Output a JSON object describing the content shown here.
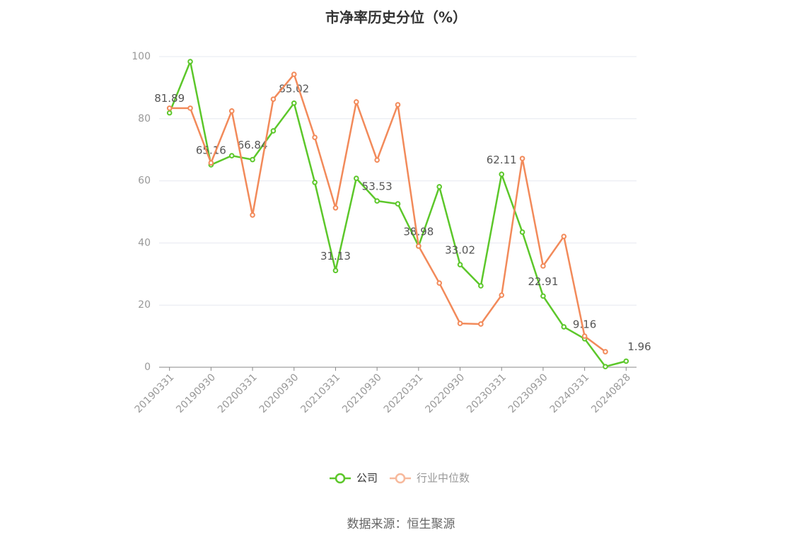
{
  "chart_data": {
    "type": "line",
    "title": "市净率历史分位（%）",
    "categories": [
      "20190331",
      null,
      "20190930",
      null,
      "20200331",
      null,
      "20200930",
      null,
      "20210331",
      null,
      "20210930",
      null,
      "20220331",
      null,
      "20220930",
      null,
      "20230331",
      null,
      "20230930",
      null,
      "20240331",
      null,
      "20240828"
    ],
    "series": [
      {
        "name": "公司",
        "color": "#5cc72a",
        "values": [
          81.89,
          98.4,
          65.16,
          68.1,
          66.84,
          76.1,
          85.02,
          59.5,
          31.13,
          60.8,
          53.53,
          52.6,
          38.98,
          58.1,
          33.02,
          26.2,
          62.11,
          43.5,
          22.91,
          13.0,
          9.16,
          0.2,
          1.96
        ],
        "value_labels": [
          "81.89",
          null,
          "65.16",
          null,
          "66.84",
          null,
          "85.02",
          null,
          "31.13",
          null,
          "53.53",
          null,
          "38.98",
          null,
          "33.02",
          null,
          "62.11",
          null,
          "22.91",
          null,
          "9.16",
          null,
          "1.96"
        ]
      },
      {
        "name": "行业中位数",
        "color": "#f28a5a",
        "values": [
          83.4,
          83.4,
          65.8,
          82.5,
          49.0,
          86.3,
          94.3,
          74.0,
          51.3,
          85.4,
          66.7,
          84.5,
          39.0,
          27.1,
          14.1,
          13.9,
          23.2,
          67.2,
          32.6,
          42.1,
          10.0,
          5.0,
          null
        ]
      }
    ],
    "ylim": [
      0,
      100
    ],
    "yticks": [
      0,
      20,
      40,
      60,
      80,
      100
    ],
    "grid": true,
    "source": "数据来源：恒生聚源"
  }
}
